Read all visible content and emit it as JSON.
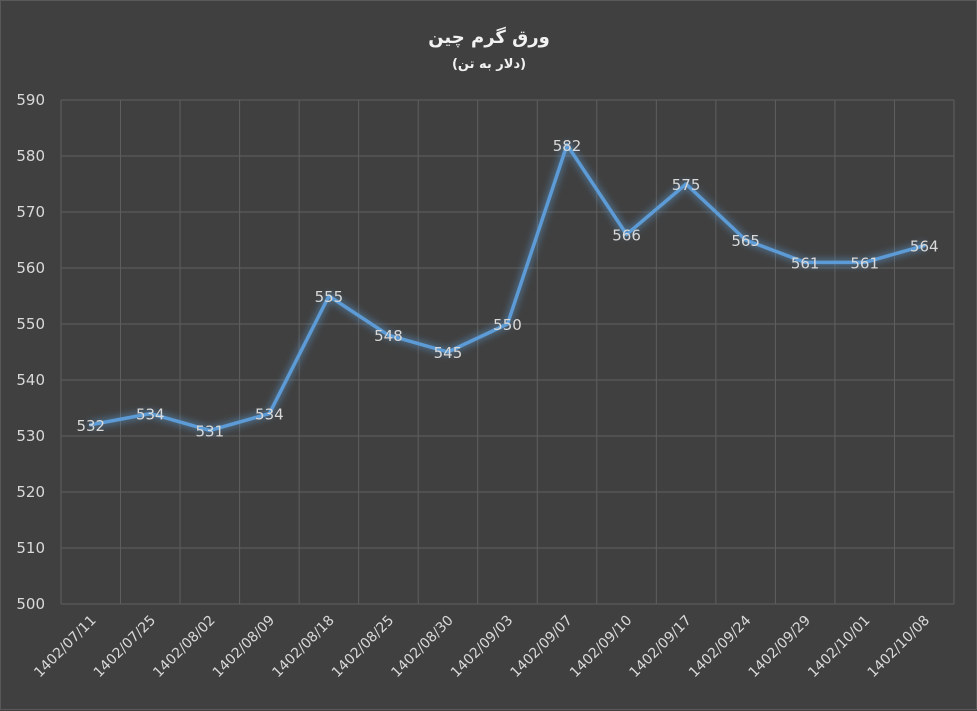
{
  "chart_data": {
    "type": "line",
    "title": "ورق گرم چین",
    "subtitle": "(دلار به تن)",
    "categories": [
      "1402/07/11",
      "1402/07/25",
      "1402/08/02",
      "1402/08/09",
      "1402/08/18",
      "1402/08/25",
      "1402/08/30",
      "1402/09/03",
      "1402/09/07",
      "1402/09/10",
      "1402/09/17",
      "1402/09/24",
      "1402/09/29",
      "1402/10/01",
      "1402/10/08"
    ],
    "series": [
      {
        "values": [
          532,
          534,
          531,
          534,
          555,
          548,
          545,
          550,
          582,
          566,
          575,
          565,
          561,
          561,
          564
        ]
      }
    ],
    "ylim": [
      500,
      590
    ],
    "yticks": [
      500,
      510,
      520,
      530,
      540,
      550,
      560,
      570,
      580,
      590
    ],
    "grid": true,
    "data_labels": true,
    "line_color": "#5b9bd5"
  }
}
